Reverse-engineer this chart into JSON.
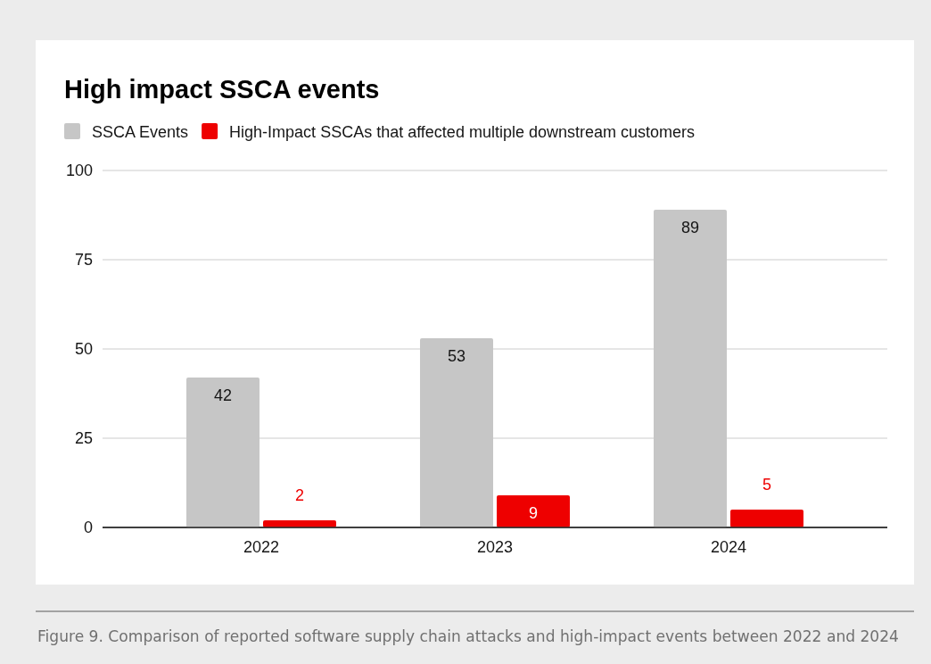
{
  "chart_data": {
    "type": "bar",
    "title": "High impact SSCA events",
    "categories": [
      "2022",
      "2023",
      "2024"
    ],
    "series": [
      {
        "name": "SSCA Events",
        "color": "#c6c6c6",
        "values": [
          42,
          53,
          89
        ]
      },
      {
        "name": "High-Impact SSCAs that affected multiple downstream customers",
        "color": "#ee0000",
        "values": [
          2,
          9,
          5
        ]
      }
    ],
    "ylim": [
      0,
      100
    ],
    "yticks": [
      0,
      25,
      50,
      75,
      100
    ],
    "grid": "y",
    "legend": "top left",
    "data_labels": true,
    "annotations": [
      "Figure 9. Comparison of reported software supply chain attacks and high-impact events between 2022 and 2024"
    ]
  }
}
